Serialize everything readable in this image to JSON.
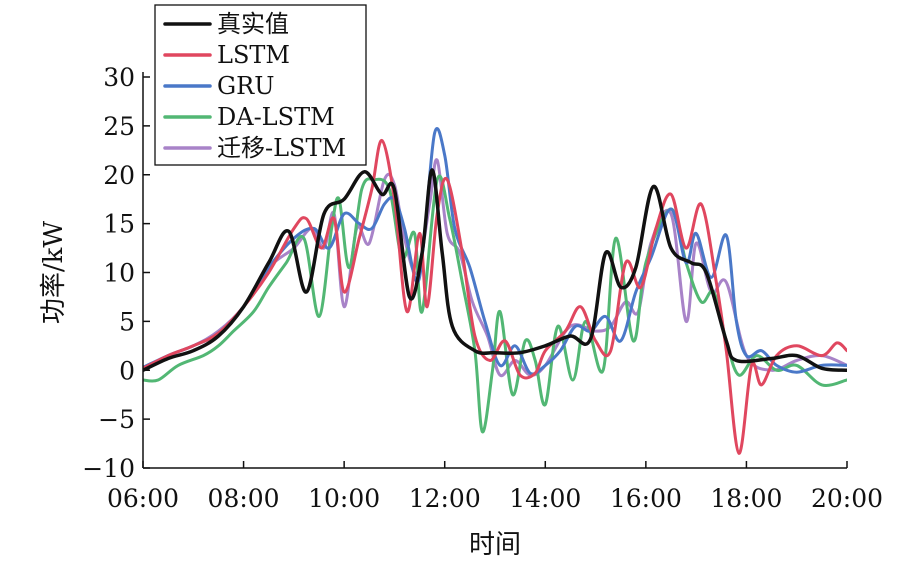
{
  "chart_data": {
    "type": "line",
    "xlabel": "时间",
    "ylabel": "功率/kW",
    "xlim": [
      6,
      20
    ],
    "ylim": [
      -10,
      30
    ],
    "x_ticks": [
      6,
      8,
      10,
      12,
      14,
      16,
      18,
      20
    ],
    "x_tick_labels": [
      "06:00",
      "08:00",
      "10:00",
      "12:00",
      "14:00",
      "16:00",
      "18:00",
      "20:00"
    ],
    "y_ticks": [
      -10,
      -5,
      0,
      5,
      10,
      15,
      20,
      25,
      30
    ],
    "y_tick_labels": [
      "−10",
      "−5",
      "0",
      "5",
      "10",
      "15",
      "20",
      "25",
      "30"
    ],
    "grid": false,
    "legend_position": "top-left",
    "series": [
      {
        "name": "真实值",
        "color": "#111111",
        "points": [
          [
            6.0,
            0.0
          ],
          [
            6.5,
            1.2
          ],
          [
            7.0,
            2.0
          ],
          [
            7.5,
            3.5
          ],
          [
            8.0,
            6.5
          ],
          [
            8.5,
            11.0
          ],
          [
            8.9,
            14.2
          ],
          [
            9.25,
            8.0
          ],
          [
            9.6,
            16.0
          ],
          [
            10.0,
            17.5
          ],
          [
            10.4,
            20.3
          ],
          [
            10.75,
            18.0
          ],
          [
            11.0,
            18.5
          ],
          [
            11.3,
            7.5
          ],
          [
            11.55,
            12.0
          ],
          [
            11.75,
            20.5
          ],
          [
            11.95,
            12.0
          ],
          [
            12.15,
            4.5
          ],
          [
            12.6,
            2.0
          ],
          [
            13.0,
            1.8
          ],
          [
            13.5,
            1.8
          ],
          [
            14.0,
            2.5
          ],
          [
            14.5,
            3.5
          ],
          [
            14.9,
            3.2
          ],
          [
            15.2,
            12.0
          ],
          [
            15.5,
            8.5
          ],
          [
            15.8,
            10.5
          ],
          [
            16.15,
            18.8
          ],
          [
            16.5,
            12.5
          ],
          [
            16.9,
            11.0
          ],
          [
            17.2,
            10.0
          ],
          [
            17.6,
            3.0
          ],
          [
            17.8,
            1.0
          ],
          [
            18.5,
            1.2
          ],
          [
            19.0,
            1.5
          ],
          [
            19.5,
            0.2
          ],
          [
            20.0,
            0.0
          ]
        ]
      },
      {
        "name": "LSTM",
        "color": "#e0475f",
        "points": [
          [
            6.0,
            0.2
          ],
          [
            6.5,
            1.5
          ],
          [
            7.0,
            2.5
          ],
          [
            7.5,
            3.8
          ],
          [
            8.0,
            6.5
          ],
          [
            8.5,
            10.0
          ],
          [
            9.0,
            14.5
          ],
          [
            9.25,
            15.5
          ],
          [
            9.55,
            12.5
          ],
          [
            9.8,
            15.5
          ],
          [
            10.0,
            8.0
          ],
          [
            10.3,
            13.5
          ],
          [
            10.55,
            18.5
          ],
          [
            10.75,
            23.5
          ],
          [
            11.0,
            17.5
          ],
          [
            11.25,
            6.0
          ],
          [
            11.5,
            14.0
          ],
          [
            11.65,
            6.5
          ],
          [
            11.85,
            16.0
          ],
          [
            12.05,
            19.5
          ],
          [
            12.35,
            12.0
          ],
          [
            12.6,
            3.5
          ],
          [
            12.9,
            1.0
          ],
          [
            13.2,
            3.0
          ],
          [
            13.5,
            -0.5
          ],
          [
            13.8,
            -0.3
          ],
          [
            14.0,
            2.0
          ],
          [
            14.4,
            4.0
          ],
          [
            14.7,
            6.5
          ],
          [
            15.0,
            3.0
          ],
          [
            15.3,
            2.0
          ],
          [
            15.6,
            11.0
          ],
          [
            15.9,
            8.5
          ],
          [
            16.2,
            14.5
          ],
          [
            16.5,
            18.0
          ],
          [
            16.8,
            12.5
          ],
          [
            17.1,
            17.0
          ],
          [
            17.4,
            9.0
          ],
          [
            17.6,
            2.0
          ],
          [
            17.85,
            -8.5
          ],
          [
            18.1,
            0.5
          ],
          [
            18.3,
            -1.5
          ],
          [
            18.6,
            1.5
          ],
          [
            19.0,
            2.5
          ],
          [
            19.5,
            1.5
          ],
          [
            19.8,
            2.8
          ],
          [
            20.0,
            2.0
          ]
        ]
      },
      {
        "name": "GRU",
        "color": "#4a78c8",
        "points": [
          [
            6.0,
            0.3
          ],
          [
            6.5,
            1.5
          ],
          [
            7.0,
            2.5
          ],
          [
            7.5,
            3.8
          ],
          [
            8.0,
            6.5
          ],
          [
            8.5,
            10.5
          ],
          [
            9.0,
            13.5
          ],
          [
            9.4,
            14.5
          ],
          [
            9.7,
            12.5
          ],
          [
            10.0,
            16.0
          ],
          [
            10.3,
            15.0
          ],
          [
            10.55,
            14.5
          ],
          [
            10.8,
            17.0
          ],
          [
            11.0,
            17.5
          ],
          [
            11.2,
            14.5
          ],
          [
            11.45,
            9.0
          ],
          [
            11.6,
            14.0
          ],
          [
            11.8,
            24.3
          ],
          [
            12.0,
            22.0
          ],
          [
            12.2,
            14.5
          ],
          [
            12.5,
            10.5
          ],
          [
            12.8,
            5.0
          ],
          [
            13.1,
            0.5
          ],
          [
            13.4,
            2.5
          ],
          [
            13.7,
            -0.3
          ],
          [
            14.0,
            0.5
          ],
          [
            14.3,
            2.0
          ],
          [
            14.6,
            4.5
          ],
          [
            14.9,
            4.0
          ],
          [
            15.2,
            5.5
          ],
          [
            15.5,
            3.0
          ],
          [
            15.8,
            8.0
          ],
          [
            16.1,
            11.5
          ],
          [
            16.5,
            16.5
          ],
          [
            16.8,
            11.0
          ],
          [
            17.0,
            14.0
          ],
          [
            17.3,
            9.5
          ],
          [
            17.6,
            13.8
          ],
          [
            17.8,
            5.0
          ],
          [
            18.0,
            1.5
          ],
          [
            18.3,
            2.0
          ],
          [
            18.6,
            0.5
          ],
          [
            19.0,
            -0.2
          ],
          [
            19.5,
            0.5
          ],
          [
            20.0,
            0.5
          ]
        ]
      },
      {
        "name": "DA-LSTM",
        "color": "#52b774",
        "points": [
          [
            6.0,
            -1.0
          ],
          [
            6.3,
            -1.0
          ],
          [
            6.7,
            0.5
          ],
          [
            7.2,
            1.5
          ],
          [
            7.5,
            2.5
          ],
          [
            7.8,
            4.0
          ],
          [
            8.2,
            6.0
          ],
          [
            8.5,
            8.5
          ],
          [
            8.85,
            11.0
          ],
          [
            9.2,
            13.5
          ],
          [
            9.5,
            5.5
          ],
          [
            9.75,
            14.5
          ],
          [
            9.9,
            17.5
          ],
          [
            10.1,
            10.5
          ],
          [
            10.35,
            18.5
          ],
          [
            10.6,
            19.5
          ],
          [
            10.9,
            18.5
          ],
          [
            11.15,
            11.5
          ],
          [
            11.4,
            14.0
          ],
          [
            11.55,
            6.0
          ],
          [
            11.85,
            19.5
          ],
          [
            12.1,
            15.5
          ],
          [
            12.35,
            9.0
          ],
          [
            12.6,
            2.0
          ],
          [
            12.75,
            -6.3
          ],
          [
            12.95,
            0.0
          ],
          [
            13.1,
            6.0
          ],
          [
            13.35,
            -2.5
          ],
          [
            13.6,
            3.0
          ],
          [
            13.8,
            1.0
          ],
          [
            14.0,
            -3.5
          ],
          [
            14.25,
            4.5
          ],
          [
            14.55,
            -1.0
          ],
          [
            14.8,
            5.0
          ],
          [
            15.15,
            0.0
          ],
          [
            15.4,
            13.5
          ],
          [
            15.75,
            3.0
          ],
          [
            16.0,
            11.0
          ],
          [
            16.5,
            16.5
          ],
          [
            16.8,
            11.0
          ],
          [
            17.1,
            7.0
          ],
          [
            17.35,
            8.0
          ],
          [
            17.6,
            3.0
          ],
          [
            17.85,
            -0.5
          ],
          [
            18.2,
            1.5
          ],
          [
            18.6,
            0.0
          ],
          [
            19.0,
            0.5
          ],
          [
            19.5,
            -1.5
          ],
          [
            20.0,
            -1.0
          ]
        ]
      },
      {
        "name": "迁移-LSTM",
        "color": "#a883c8",
        "points": [
          [
            6.0,
            0.0
          ],
          [
            6.5,
            1.5
          ],
          [
            7.0,
            2.5
          ],
          [
            7.5,
            4.0
          ],
          [
            8.0,
            6.5
          ],
          [
            8.5,
            10.5
          ],
          [
            9.0,
            12.5
          ],
          [
            9.35,
            14.5
          ],
          [
            9.6,
            12.5
          ],
          [
            9.8,
            16.0
          ],
          [
            10.0,
            6.5
          ],
          [
            10.25,
            14.5
          ],
          [
            10.5,
            13.0
          ],
          [
            10.8,
            19.5
          ],
          [
            11.0,
            19.0
          ],
          [
            11.2,
            13.5
          ],
          [
            11.45,
            10.0
          ],
          [
            11.7,
            17.0
          ],
          [
            11.85,
            21.5
          ],
          [
            12.05,
            14.0
          ],
          [
            12.3,
            12.0
          ],
          [
            12.55,
            7.0
          ],
          [
            12.85,
            3.5
          ],
          [
            13.1,
            -0.5
          ],
          [
            13.4,
            1.0
          ],
          [
            13.7,
            -0.5
          ],
          [
            14.0,
            0.5
          ],
          [
            14.5,
            4.5
          ],
          [
            15.0,
            4.0
          ],
          [
            15.3,
            4.5
          ],
          [
            15.6,
            7.0
          ],
          [
            15.85,
            6.0
          ],
          [
            16.1,
            13.0
          ],
          [
            16.5,
            16.0
          ],
          [
            16.8,
            5.0
          ],
          [
            17.0,
            13.0
          ],
          [
            17.3,
            8.0
          ],
          [
            17.6,
            9.0
          ],
          [
            18.0,
            1.5
          ],
          [
            18.5,
            0.0
          ],
          [
            19.0,
            1.0
          ],
          [
            19.5,
            1.5
          ],
          [
            20.0,
            0.5
          ]
        ]
      }
    ]
  }
}
